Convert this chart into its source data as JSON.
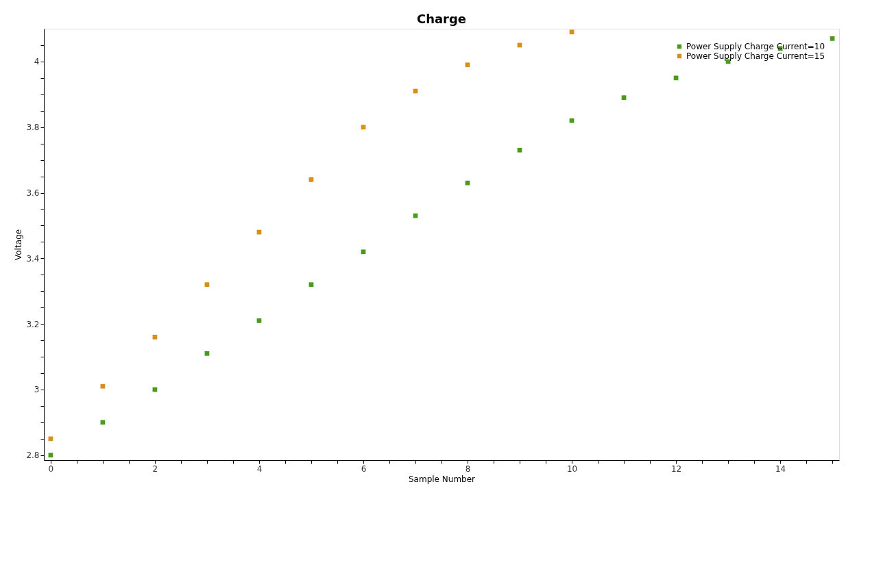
{
  "chart_data": {
    "type": "scatter",
    "title": "Charge",
    "xlabel": "Sample Number",
    "ylabel": "Voltage",
    "xlim": [
      -0.13,
      15.13
    ],
    "ylim": [
      2.785,
      4.1
    ],
    "xticks": [
      0,
      {
        "value": 0.5,
        "label": null
      },
      {
        "value": 1,
        "label": null
      },
      {
        "value": 1.5,
        "label": null
      },
      2,
      {
        "value": 2.5,
        "label": null
      },
      {
        "value": 3,
        "label": null
      },
      {
        "value": 3.5,
        "label": null
      },
      4,
      {
        "value": 4.5,
        "label": null
      },
      {
        "value": 5,
        "label": null
      },
      {
        "value": 5.5,
        "label": null
      },
      6,
      {
        "value": 6.5,
        "label": null
      },
      {
        "value": 7,
        "label": null
      },
      {
        "value": 7.5,
        "label": null
      },
      8,
      {
        "value": 8.5,
        "label": null
      },
      {
        "value": 9,
        "label": null
      },
      {
        "value": 9.5,
        "label": null
      },
      10,
      {
        "value": 10.5,
        "label": null
      },
      {
        "value": 11,
        "label": null
      },
      {
        "value": 11.5,
        "label": null
      },
      12,
      {
        "value": 12.5,
        "label": null
      },
      {
        "value": 13,
        "label": null
      },
      {
        "value": 13.5,
        "label": null
      },
      14,
      {
        "value": 14.5,
        "label": null
      },
      {
        "value": 15,
        "label": null
      }
    ],
    "yticks": [
      2.8,
      {
        "value": 2.85,
        "label": null
      },
      {
        "value": 2.9,
        "label": null
      },
      {
        "value": 2.95,
        "label": null
      },
      3,
      {
        "value": 3.05,
        "label": null
      },
      {
        "value": 3.1,
        "label": null
      },
      {
        "value": 3.15,
        "label": null
      },
      3.2,
      {
        "value": 3.25,
        "label": null
      },
      {
        "value": 3.3,
        "label": null
      },
      {
        "value": 3.35,
        "label": null
      },
      3.4,
      {
        "value": 3.45,
        "label": null
      },
      {
        "value": 3.5,
        "label": null
      },
      {
        "value": 3.55,
        "label": null
      },
      3.6,
      {
        "value": 3.65,
        "label": null
      },
      {
        "value": 3.7,
        "label": null
      },
      {
        "value": 3.75,
        "label": null
      },
      3.8,
      {
        "value": 3.85,
        "label": null
      },
      {
        "value": 3.9,
        "label": null
      },
      {
        "value": 3.95,
        "label": null
      },
      4,
      {
        "value": 4.05,
        "label": null
      }
    ],
    "marker": "square",
    "grid": false,
    "legend": "top right",
    "series": [
      {
        "name": "Power Supply Charge Current=10",
        "color": "#4a9a1e",
        "x": [
          0,
          1,
          2,
          3,
          4,
          5,
          6,
          7,
          8,
          9,
          10,
          11,
          12,
          13,
          14,
          15
        ],
        "values": [
          2.8,
          2.9,
          3.0,
          3.11,
          3.21,
          3.32,
          3.42,
          3.53,
          3.63,
          3.73,
          3.82,
          3.89,
          3.95,
          4.0,
          4.04,
          4.07
        ]
      },
      {
        "name": "Power Supply Charge Current=15",
        "color": "#d4901a",
        "x": [
          0,
          1,
          2,
          3,
          4,
          5,
          6,
          7,
          8,
          9,
          10
        ],
        "values": [
          2.85,
          3.01,
          3.16,
          3.32,
          3.48,
          3.64,
          3.8,
          3.91,
          3.99,
          4.05,
          4.09
        ]
      }
    ]
  }
}
